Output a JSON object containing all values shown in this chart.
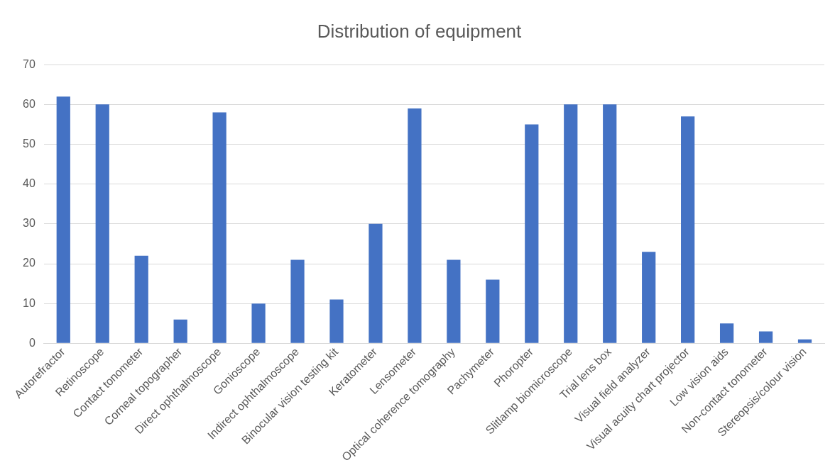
{
  "chart_data": {
    "type": "bar",
    "title": "Distribution of equipment",
    "categories": [
      "Autorefractor",
      "Retinoscope",
      "Contact tonometer",
      "Corneal topographer",
      "Direct ophthalmoscope",
      "Gonioscope",
      "Indirect ophthalmoscope",
      "Binocular vision testing kit",
      "Keratometer",
      "Lensometer",
      "Optical coherence tomography",
      "Pachymeter",
      "Phoropter",
      "Slitlamp biomicroscope",
      "Trial lens box",
      "Visual field analyzer",
      "Visual acuity chart projector",
      "Low vision aids",
      "Non-contact tonometer",
      "Stereopsis/colour vision"
    ],
    "values": [
      62,
      60,
      22,
      6,
      58,
      10,
      21,
      11,
      30,
      59,
      21,
      16,
      55,
      60,
      60,
      23,
      57,
      5,
      3,
      1
    ],
    "color": "#4472c4",
    "ylim": [
      0,
      70
    ],
    "yticks": [
      0,
      10,
      20,
      30,
      40,
      50,
      60,
      70
    ],
    "grid": "y"
  }
}
